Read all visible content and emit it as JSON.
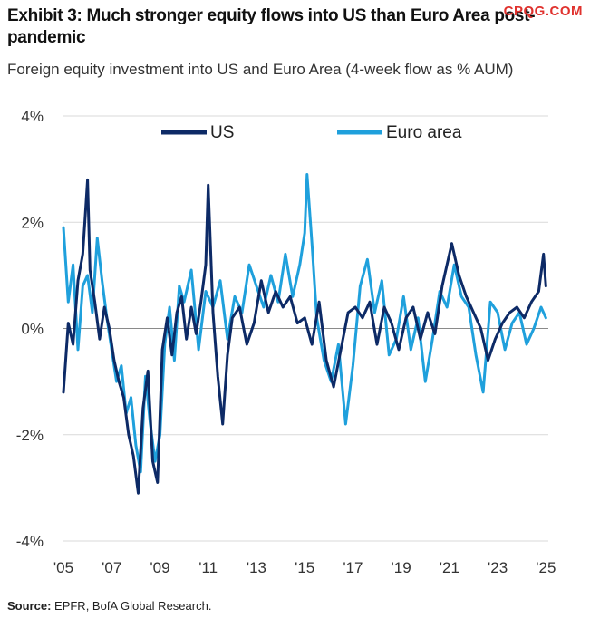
{
  "header": {
    "title": "Exhibit 3: Much stronger equity flows into US than Euro Area post-pandemic",
    "subtitle": "Foreign equity investment into US and Euro Area (4-week flow as % AUM)",
    "watermark": "CPQG.COM"
  },
  "footer": {
    "source_label": "Source:",
    "source_text": " EPFR, BofA Global Research."
  },
  "colors": {
    "us": "#0d2a66",
    "euro": "#1fa0dc",
    "grid": "#d9d9d9"
  },
  "chart_data": {
    "type": "line",
    "title": "Exhibit 3: Much stronger equity flows into US than Euro Area post-pandemic",
    "subtitle": "Foreign equity investment into US and Euro Area (4-week flow as % AUM)",
    "xlabel": "",
    "ylabel": "",
    "xlim": [
      2005,
      2025.1
    ],
    "ylim": [
      -4,
      4
    ],
    "x_ticks": [
      2005,
      2007,
      2009,
      2011,
      2013,
      2015,
      2017,
      2019,
      2021,
      2023,
      2025
    ],
    "x_tick_labels": [
      "'05",
      "'07",
      "'09",
      "'11",
      "'13",
      "'15",
      "'17",
      "'19",
      "'21",
      "'23",
      "'25"
    ],
    "y_ticks": [
      -4,
      -2,
      0,
      2,
      4
    ],
    "y_tick_labels": [
      "-4%",
      "-2%",
      "0%",
      "2%",
      "4%"
    ],
    "grid": true,
    "legend_position": "top",
    "series": [
      {
        "name": "US",
        "color": "#0d2a66",
        "x": [
          2005.0,
          2005.2,
          2005.4,
          2005.6,
          2005.8,
          2006.0,
          2006.1,
          2006.3,
          2006.5,
          2006.7,
          2006.9,
          2007.1,
          2007.3,
          2007.5,
          2007.7,
          2007.9,
          2008.1,
          2008.3,
          2008.5,
          2008.7,
          2008.9,
          2009.1,
          2009.3,
          2009.5,
          2009.7,
          2009.9,
          2010.1,
          2010.3,
          2010.5,
          2010.7,
          2010.9,
          2011.0,
          2011.2,
          2011.4,
          2011.6,
          2011.8,
          2012.0,
          2012.3,
          2012.6,
          2012.9,
          2013.2,
          2013.5,
          2013.8,
          2014.1,
          2014.4,
          2014.7,
          2015.0,
          2015.3,
          2015.6,
          2015.9,
          2016.2,
          2016.5,
          2016.8,
          2017.1,
          2017.4,
          2017.7,
          2018.0,
          2018.3,
          2018.6,
          2018.9,
          2019.2,
          2019.5,
          2019.8,
          2020.1,
          2020.4,
          2020.7,
          2020.9,
          2021.1,
          2021.4,
          2021.7,
          2022.0,
          2022.3,
          2022.6,
          2022.9,
          2023.2,
          2023.5,
          2023.8,
          2024.1,
          2024.4,
          2024.7,
          2024.9,
          2025.0
        ],
        "values": [
          -1.2,
          0.1,
          -0.3,
          0.9,
          1.4,
          2.8,
          1.1,
          0.5,
          -0.2,
          0.4,
          0.0,
          -0.6,
          -1.0,
          -1.3,
          -2.0,
          -2.4,
          -3.1,
          -1.5,
          -0.8,
          -2.5,
          -2.9,
          -0.4,
          0.2,
          -0.5,
          0.3,
          0.6,
          -0.2,
          0.4,
          -0.1,
          0.5,
          1.2,
          2.7,
          0.3,
          -0.9,
          -1.8,
          -0.5,
          0.2,
          0.4,
          -0.3,
          0.1,
          0.9,
          0.3,
          0.7,
          0.4,
          0.6,
          0.1,
          0.2,
          -0.3,
          0.5,
          -0.6,
          -1.1,
          -0.4,
          0.3,
          0.4,
          0.2,
          0.5,
          -0.3,
          0.4,
          0.1,
          -0.4,
          0.2,
          0.4,
          -0.2,
          0.3,
          -0.1,
          0.8,
          1.2,
          1.6,
          1.0,
          0.6,
          0.3,
          0.0,
          -0.6,
          -0.2,
          0.1,
          0.3,
          0.4,
          0.2,
          0.5,
          0.7,
          1.4,
          0.8
        ]
      },
      {
        "name": "Euro area",
        "color": "#1fa0dc",
        "x": [
          2005.0,
          2005.2,
          2005.4,
          2005.6,
          2005.8,
          2006.0,
          2006.2,
          2006.4,
          2006.6,
          2006.8,
          2007.0,
          2007.2,
          2007.4,
          2007.6,
          2007.8,
          2008.0,
          2008.2,
          2008.4,
          2008.6,
          2008.8,
          2009.0,
          2009.2,
          2009.4,
          2009.6,
          2009.8,
          2010.0,
          2010.3,
          2010.6,
          2010.9,
          2011.2,
          2011.5,
          2011.8,
          2012.1,
          2012.4,
          2012.7,
          2013.0,
          2013.3,
          2013.6,
          2013.9,
          2014.2,
          2014.5,
          2014.8,
          2015.0,
          2015.1,
          2015.3,
          2015.5,
          2015.8,
          2016.1,
          2016.4,
          2016.7,
          2017.0,
          2017.3,
          2017.6,
          2017.9,
          2018.2,
          2018.5,
          2018.8,
          2019.1,
          2019.4,
          2019.7,
          2020.0,
          2020.3,
          2020.6,
          2020.9,
          2021.2,
          2021.5,
          2021.8,
          2022.1,
          2022.4,
          2022.7,
          2023.0,
          2023.3,
          2023.6,
          2023.9,
          2024.2,
          2024.5,
          2024.8,
          2025.0
        ],
        "values": [
          1.9,
          0.5,
          1.2,
          -0.4,
          0.8,
          1.0,
          0.3,
          1.7,
          0.9,
          0.2,
          -0.4,
          -1.0,
          -0.7,
          -1.6,
          -1.3,
          -2.2,
          -2.7,
          -0.9,
          -1.8,
          -2.5,
          -2.0,
          -0.3,
          0.4,
          -0.6,
          0.8,
          0.5,
          1.1,
          -0.4,
          0.7,
          0.4,
          0.9,
          -0.2,
          0.6,
          0.3,
          1.2,
          0.8,
          0.4,
          1.0,
          0.5,
          1.4,
          0.6,
          1.2,
          1.8,
          2.9,
          1.6,
          0.2,
          -0.6,
          -1.0,
          -0.3,
          -1.8,
          -0.7,
          0.8,
          1.3,
          0.3,
          0.9,
          -0.5,
          -0.2,
          0.6,
          -0.4,
          0.2,
          -1.0,
          -0.2,
          0.7,
          0.4,
          1.2,
          0.6,
          0.4,
          -0.5,
          -1.2,
          0.5,
          0.3,
          -0.4,
          0.1,
          0.3,
          -0.3,
          0.0,
          0.4,
          0.2
        ]
      }
    ]
  }
}
